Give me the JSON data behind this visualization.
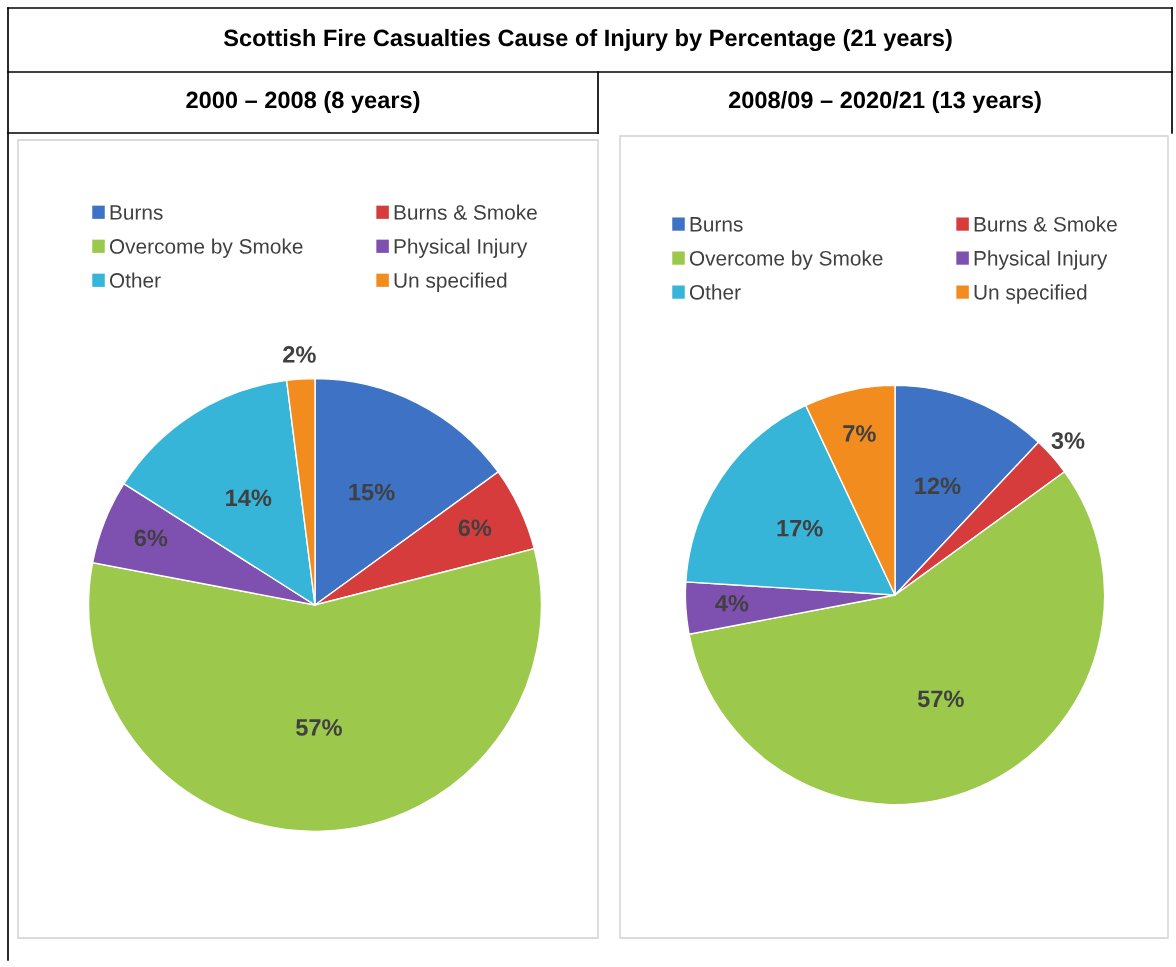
{
  "chart_data": [
    {
      "type": "pie",
      "title": "Scottish Fire Casualties Cause of Injury by Percentage (21 years)",
      "subtitle": "2000 – 2008 (8 years)",
      "categories": [
        "Burns",
        "Burns & Smoke",
        "Overcome by Smoke",
        "Physical Injury",
        "Other",
        "Un specified"
      ],
      "values": [
        15,
        6,
        57,
        6,
        14,
        2
      ],
      "value_labels": [
        "15%",
        "6%",
        "57%",
        "6%",
        "14%",
        "2%"
      ],
      "colors": [
        "#3d72c4",
        "#d63c3c",
        "#9cc84b",
        "#7e50b0",
        "#36b5d8",
        "#f28c1e"
      ],
      "legend": "top"
    },
    {
      "type": "pie",
      "title": "2008/09 – 2020/21 (13 years)",
      "categories": [
        "Burns",
        "Burns & Smoke",
        "Overcome by Smoke",
        "Physical Injury",
        "Other",
        "Un specified"
      ],
      "values": [
        12,
        3,
        57,
        4,
        17,
        7
      ],
      "value_labels": [
        "12%",
        "3%",
        "57%",
        "4%",
        "17%",
        "7%"
      ],
      "colors": [
        "#3d72c4",
        "#d63c3c",
        "#9cc84b",
        "#7e50b0",
        "#36b5d8",
        "#f28c1e"
      ],
      "legend": "top"
    }
  ]
}
